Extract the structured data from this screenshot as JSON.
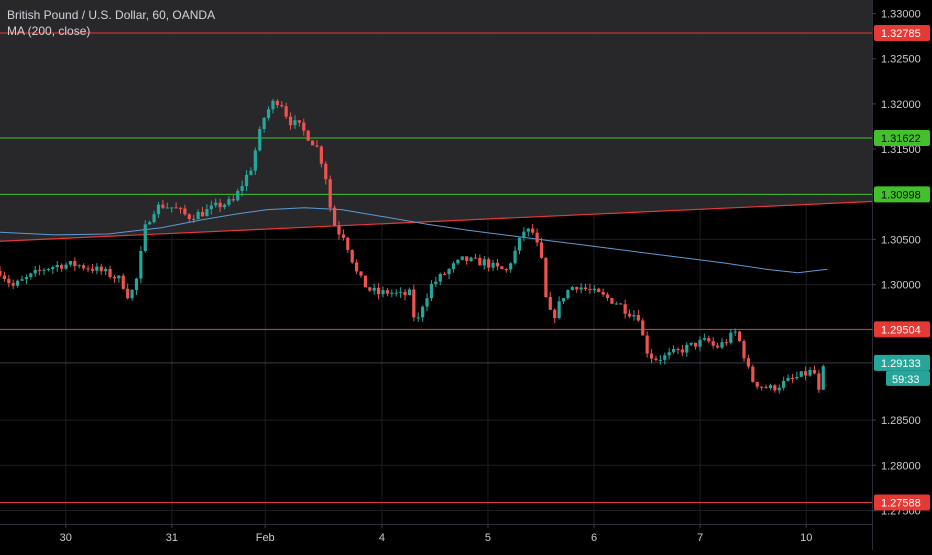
{
  "chart_header": {
    "title": "British Pound / U.S. Dollar, 60, OANDA",
    "indicator": "MA (200, close)"
  },
  "countdown": "59:33",
  "colors": {
    "background": "#000000",
    "shaded_zone": "#2a2a2d",
    "up_candle": "#26a69a",
    "down_candle": "#ef5350",
    "ma_line": "#5b9bd5",
    "red_line": "#e53935",
    "green_line": "#43c12b",
    "axis_text": "#c9cbd2"
  },
  "chart_data": {
    "type": "candlestick",
    "symbol": "British Pound / U.S. Dollar",
    "interval": "60",
    "source": "OANDA",
    "y_ticks": [
      "1.33000",
      "1.32500",
      "1.32000",
      "1.31500",
      "1.30500",
      "1.30000",
      "1.29500",
      "1.28500",
      "1.28000",
      "1.27500"
    ],
    "ylim": [
      1.2735,
      1.3315
    ],
    "x_ticks": [
      "30",
      "31",
      "Feb",
      "4",
      "5",
      "6",
      "7",
      "10"
    ],
    "x_tick_positions": [
      -2.8,
      -1.8,
      -0.92,
      0.18,
      1.18,
      2.18,
      3.18,
      4.18
    ],
    "xlim": [
      -3.42,
      4.8
    ],
    "price_levels": [
      {
        "label": "1.32785",
        "value": 1.32785,
        "color": "red"
      },
      {
        "label": "1.31622",
        "value": 1.31622,
        "color": "green"
      },
      {
        "label": "1.30998",
        "value": 1.30998,
        "color": "green"
      },
      {
        "label": "1.29504",
        "value": 1.29504,
        "color": "red"
      },
      {
        "label": "1.27588",
        "value": 1.27588,
        "color": "red"
      }
    ],
    "current_price": {
      "label": "1.29133",
      "value": 1.29133
    },
    "shaded_zone": {
      "top": 1.3315,
      "bottom_start": 1.3048,
      "bottom_end": 1.3092
    },
    "moving_average": {
      "name": "MA (200, close)",
      "points": [
        [
          -3.42,
          1.3058
        ],
        [
          -2.9,
          1.3055
        ],
        [
          -2.4,
          1.3056
        ],
        [
          -1.9,
          1.3063
        ],
        [
          -1.5,
          1.3072
        ],
        [
          -1.2,
          1.3078
        ],
        [
          -0.9,
          1.3083
        ],
        [
          -0.55,
          1.3085
        ],
        [
          -0.2,
          1.3083
        ],
        [
          0.2,
          1.3075
        ],
        [
          0.6,
          1.3067
        ],
        [
          1.0,
          1.306
        ],
        [
          1.4,
          1.3054
        ],
        [
          1.8,
          1.3048
        ],
        [
          2.2,
          1.3042
        ],
        [
          2.6,
          1.3036
        ],
        [
          3.0,
          1.303
        ],
        [
          3.4,
          1.3024
        ],
        [
          3.8,
          1.3017
        ],
        [
          4.1,
          1.3013
        ],
        [
          4.38,
          1.3017
        ]
      ]
    },
    "close_path": [
      [
        -3.42,
        1.3015
      ],
      [
        -3.3,
        1.2998
      ],
      [
        -3.15,
        1.3008
      ],
      [
        -3.0,
        1.3018
      ],
      [
        -2.85,
        1.3022
      ],
      [
        -2.7,
        1.3022
      ],
      [
        -2.55,
        1.3018
      ],
      [
        -2.4,
        1.3012
      ],
      [
        -2.28,
        1.3005
      ],
      [
        -2.2,
        1.2985
      ],
      [
        -2.12,
        1.301
      ],
      [
        -2.06,
        1.306
      ],
      [
        -1.98,
        1.3082
      ],
      [
        -1.9,
        1.3088
      ],
      [
        -1.78,
        1.3085
      ],
      [
        -1.65,
        1.3075
      ],
      [
        -1.5,
        1.308
      ],
      [
        -1.35,
        1.3088
      ],
      [
        -1.22,
        1.3092
      ],
      [
        -1.12,
        1.3115
      ],
      [
        -1.05,
        1.313
      ],
      [
        -0.99,
        1.316
      ],
      [
        -0.93,
        1.3185
      ],
      [
        -0.86,
        1.32
      ],
      [
        -0.78,
        1.3205
      ],
      [
        -0.7,
        1.3182
      ],
      [
        -0.6,
        1.3175
      ],
      [
        -0.5,
        1.3162
      ],
      [
        -0.42,
        1.315
      ],
      [
        -0.35,
        1.312
      ],
      [
        -0.3,
        1.308
      ],
      [
        -0.25,
        1.306
      ],
      [
        -0.18,
        1.3055
      ],
      [
        -0.12,
        1.3035
      ],
      [
        -0.05,
        1.301
      ],
      [
        0.05,
        1.2995
      ],
      [
        0.15,
        1.299
      ],
      [
        0.25,
        1.2992
      ],
      [
        0.35,
        1.2988
      ],
      [
        0.45,
        1.299
      ],
      [
        0.5,
        1.295
      ],
      [
        0.55,
        1.2975
      ],
      [
        0.65,
        1.3
      ],
      [
        0.75,
        1.301
      ],
      [
        0.85,
        1.302
      ],
      [
        0.95,
        1.3028
      ],
      [
        1.05,
        1.3025
      ],
      [
        1.15,
        1.3025
      ],
      [
        1.25,
        1.3018
      ],
      [
        1.35,
        1.3015
      ],
      [
        1.45,
        1.304
      ],
      [
        1.52,
        1.306
      ],
      [
        1.6,
        1.3058
      ],
      [
        1.68,
        1.303
      ],
      [
        1.74,
        1.297
      ],
      [
        1.8,
        1.2965
      ],
      [
        1.9,
        1.299
      ],
      [
        2.0,
        1.3
      ],
      [
        2.1,
        1.2995
      ],
      [
        2.2,
        1.299
      ],
      [
        2.3,
        1.2985
      ],
      [
        2.4,
        1.298
      ],
      [
        2.5,
        1.297
      ],
      [
        2.6,
        1.2965
      ],
      [
        2.66,
        1.293
      ],
      [
        2.74,
        1.2918
      ],
      [
        2.85,
        1.292
      ],
      [
        2.95,
        1.2925
      ],
      [
        3.05,
        1.293
      ],
      [
        3.15,
        1.2935
      ],
      [
        3.25,
        1.2938
      ],
      [
        3.32,
        1.293
      ],
      [
        3.4,
        1.2935
      ],
      [
        3.52,
        1.2948
      ],
      [
        3.6,
        1.292
      ],
      [
        3.66,
        1.2895
      ],
      [
        3.75,
        1.2888
      ],
      [
        3.85,
        1.2885
      ],
      [
        3.95,
        1.289
      ],
      [
        4.05,
        1.2895
      ],
      [
        4.15,
        1.29
      ],
      [
        4.25,
        1.2905
      ],
      [
        4.3,
        1.288
      ],
      [
        4.34,
        1.2905
      ],
      [
        4.38,
        1.2913
      ]
    ]
  }
}
